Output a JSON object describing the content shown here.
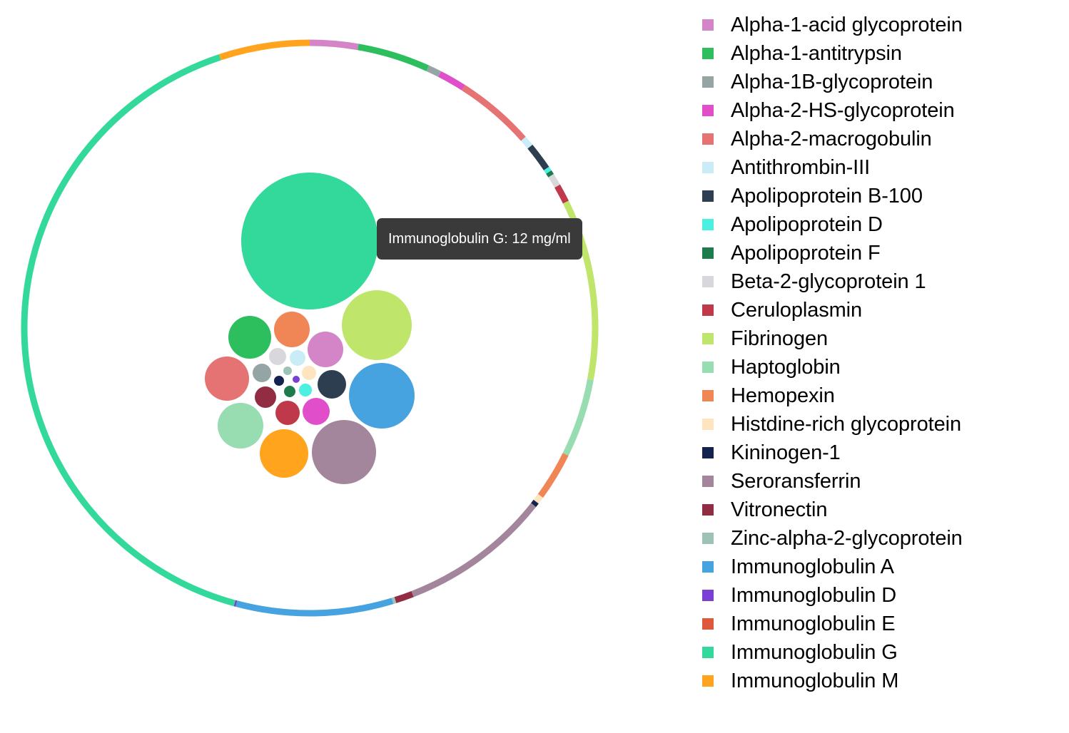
{
  "chart_data": {
    "type": "bubble-pack-with-donut-ring",
    "tooltip": {
      "text": "Immunoglobulin G: 12 mg/ml"
    },
    "series": [
      {
        "name": "Alpha-1-acid glycoprotein",
        "color": "#d485c8",
        "value": 0.8
      },
      {
        "name": "Alpha-1-antitrypsin",
        "color": "#2dbe5e",
        "value": 1.2
      },
      {
        "name": "Alpha-1B-glycoprotein",
        "color": "#95a5a6",
        "value": 0.22
      },
      {
        "name": "Alpha-2-HS-glycoprotein",
        "color": "#e04ec9",
        "value": 0.45
      },
      {
        "name": "Alpha-2-macrogobulin",
        "color": "#e57373",
        "value": 1.3
      },
      {
        "name": "Antithrombin-III",
        "color": "#c9ecf6",
        "value": 0.17
      },
      {
        "name": "Apolipoprotein B-100",
        "color": "#2c3e50",
        "value": 0.45
      },
      {
        "name": "Apolipoprotein D",
        "color": "#4bf0e0",
        "value": 0.07
      },
      {
        "name": "Apolipoprotein F",
        "color": "#1e7b4b",
        "value": 0.07
      },
      {
        "name": "Beta-2-glycoprotein 1",
        "color": "#d8d8dc",
        "value": 0.2
      },
      {
        "name": "Ceruloplasmin",
        "color": "#c0394b",
        "value": 0.3
      },
      {
        "name": "Fibrinogen",
        "color": "#bfe56b",
        "value": 3.0
      },
      {
        "name": "Haptoglobin",
        "color": "#98ddb2",
        "value": 1.3
      },
      {
        "name": "Hemopexin",
        "color": "#f08556",
        "value": 0.8
      },
      {
        "name": "Histdine-rich glycoprotein",
        "color": "#ffe4c0",
        "value": 0.12
      },
      {
        "name": "Kininogen-1",
        "color": "#13224e",
        "value": 0.07
      },
      {
        "name": "Seroransferrin",
        "color": "#a3869c",
        "value": 2.5
      },
      {
        "name": "Vitronectin",
        "color": "#922c42",
        "value": 0.3
      },
      {
        "name": "Zinc-alpha-2-glycoprotein",
        "color": "#9cc3b5",
        "value": 0.05
      },
      {
        "name": "Immunoglobulin A",
        "color": "#47a3e0",
        "value": 2.6
      },
      {
        "name": "Immunoglobulin D",
        "color": "#7a3fd3",
        "value": 0.03
      },
      {
        "name": "Immunoglobulin E",
        "color": "#e0583a",
        "value": 0.0003
      },
      {
        "name": "Immunoglobulin G",
        "color": "#33d99a",
        "value": 12
      },
      {
        "name": "Immunoglobulin M",
        "color": "#ffa41c",
        "value": 1.5
      }
    ]
  }
}
